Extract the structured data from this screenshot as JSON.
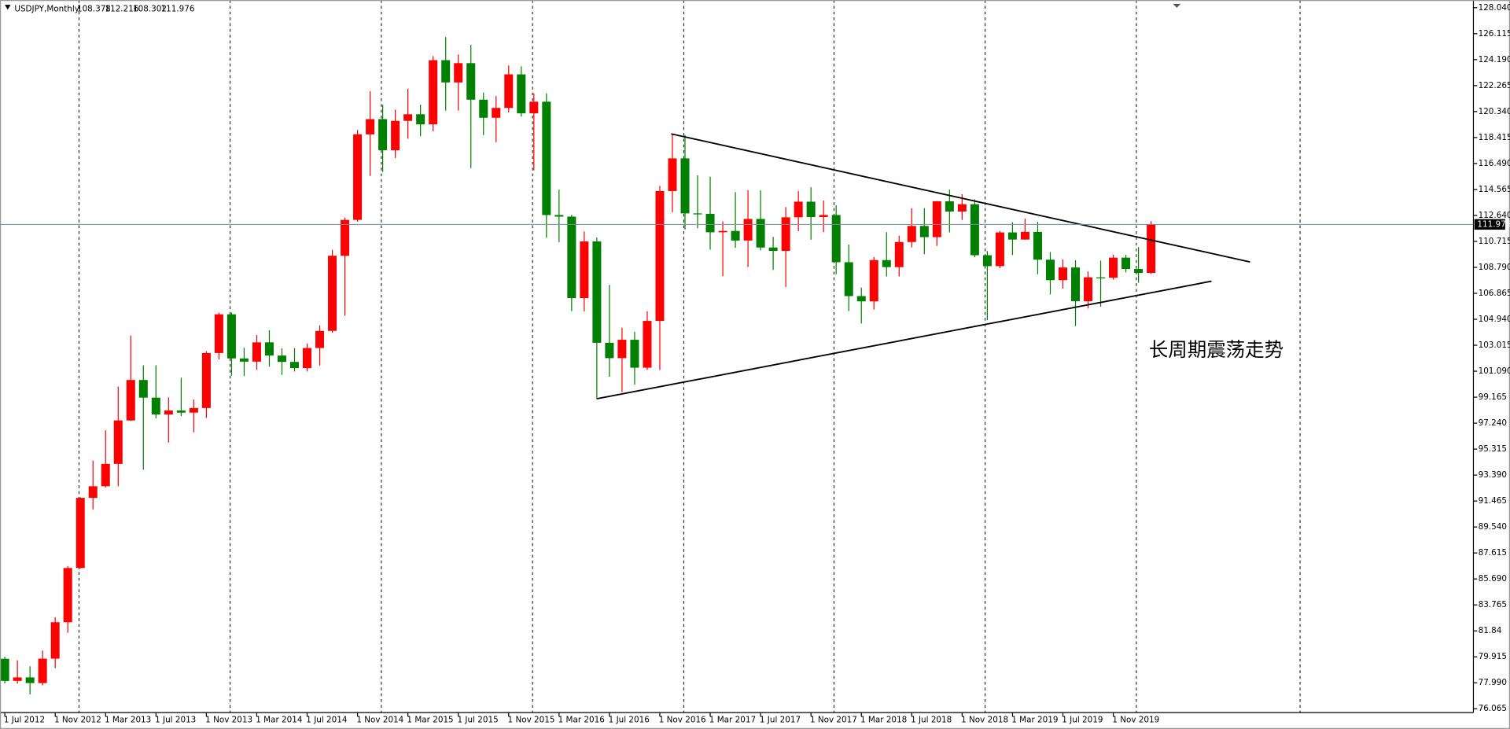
{
  "chart_data": {
    "type": "candlestick",
    "title": "USDJPY,Monthly",
    "up_color": "#ff0000",
    "down_color": "#008000",
    "price_line_color": "#778899",
    "annotation": "长周期震荡走势",
    "categories": [
      "1 Jul 2012",
      null,
      null,
      null,
      "1 Nov 2012",
      null,
      null,
      null,
      "1 Mar 2013",
      null,
      null,
      null,
      "1 Jul 2013",
      null,
      null,
      null,
      "1 Nov 2013",
      null,
      null,
      null,
      "1 Mar 2014",
      null,
      null,
      null,
      "1 Jul 2014",
      null,
      null,
      null,
      "1 Nov 2014",
      null,
      null,
      null,
      "1 Mar 2015",
      null,
      null,
      null,
      "1 Jul 2015",
      null,
      null,
      null,
      "1 Nov 2015",
      null,
      null,
      null,
      "1 Mar 2016",
      null,
      null,
      null,
      "1 Jul 2016",
      null,
      null,
      null,
      "1 Nov 2016",
      null,
      null,
      null,
      "1 Mar 2017",
      null,
      null,
      null,
      "1 Jul 2017",
      null,
      null,
      null,
      "1 Nov 2017",
      null,
      null,
      null,
      "1 Mar 2018",
      null,
      null,
      null,
      "1 Jul 2018",
      null,
      null,
      null,
      "1 Nov 2018",
      null,
      null,
      null,
      "1 Mar 2019",
      null,
      null,
      null,
      "1 Jul 2019",
      null,
      null,
      null,
      "1 Nov 2019",
      null,
      null,
      null
    ],
    "open": [
      79.77,
      78.13,
      78.39,
      77.97,
      79.78,
      82.48,
      86.5,
      91.7,
      92.56,
      94.22,
      97.44,
      100.44,
      99.13,
      97.88,
      98.18,
      98.02,
      98.36,
      102.44,
      105.31,
      102.04,
      101.8,
      103.23,
      102.25,
      101.78,
      101.32,
      102.81,
      104.08,
      109.65,
      112.31,
      118.65,
      119.78,
      117.47,
      119.65,
      120.14,
      119.39,
      124.15,
      122.5,
      123.93,
      121.22,
      119.88,
      120.61,
      123.1,
      120.21,
      121.07,
      112.67,
      112.55,
      106.51,
      110.71,
      103.2,
      102.06,
      103.42,
      101.35,
      104.82,
      114.45,
      116.87,
      112.79,
      112.76,
      111.39,
      111.49,
      110.78,
      112.38,
      110.26,
      110.01,
      112.5,
      113.66,
      112.52,
      112.67,
      109.17,
      106.66,
      106.27,
      109.33,
      108.81,
      110.67,
      111.86,
      111.03,
      113.69,
      112.93,
      113.47,
      109.69,
      108.88,
      111.38,
      110.85,
      111.42,
      109.36,
      107.84,
      108.78,
      106.28,
      108.05,
      108.02,
      109.51,
      108.67,
      108.378
    ],
    "high": [
      79.92,
      79.66,
      79.21,
      80.38,
      82.85,
      86.64,
      91.74,
      94.46,
      96.71,
      99.95,
      103.73,
      101.53,
      101.53,
      99.15,
      100.61,
      99.0,
      102.58,
      105.43,
      105.45,
      102.83,
      103.77,
      104.13,
      102.79,
      102.8,
      103.15,
      104.49,
      110.09,
      112.47,
      118.98,
      121.86,
      120.84,
      120.48,
      122.04,
      120.85,
      124.45,
      125.86,
      124.58,
      125.28,
      121.75,
      121.49,
      123.76,
      123.69,
      121.69,
      121.69,
      114.55,
      112.68,
      111.45,
      111.0,
      107.49,
      104.32,
      104.01,
      105.53,
      114.83,
      118.66,
      118.61,
      115.62,
      115.51,
      112.2,
      114.37,
      114.5,
      114.49,
      111.05,
      113.26,
      114.45,
      114.73,
      113.75,
      113.39,
      110.48,
      107.29,
      109.56,
      111.4,
      111.14,
      113.17,
      113.18,
      113.7,
      114.55,
      114.21,
      113.83,
      110.0,
      111.49,
      112.14,
      112.4,
      112.17,
      109.93,
      109.38,
      109.32,
      108.48,
      109.29,
      109.73,
      109.72,
      110.29,
      112.216
    ],
    "low": [
      77.95,
      77.93,
      77.13,
      77.8,
      79.07,
      81.7,
      86.47,
      90.84,
      92.47,
      92.56,
      97.4,
      93.79,
      97.6,
      95.8,
      97.76,
      96.56,
      97.63,
      101.97,
      100.76,
      100.74,
      101.2,
      101.43,
      100.82,
      101.07,
      101.07,
      101.51,
      103.94,
      105.19,
      112.17,
      115.57,
      115.86,
      116.9,
      118.33,
      118.52,
      118.88,
      120.41,
      120.41,
      116.15,
      118.6,
      118.07,
      120.28,
      119.97,
      115.98,
      110.98,
      110.66,
      105.55,
      105.53,
      99.02,
      100.68,
      99.54,
      100.09,
      101.2,
      101.19,
      112.88,
      111.59,
      111.69,
      110.11,
      108.13,
      110.24,
      108.82,
      110.05,
      108.6,
      107.32,
      111.47,
      110.84,
      111.4,
      108.28,
      105.55,
      104.63,
      105.66,
      108.11,
      108.11,
      110.27,
      109.77,
      110.38,
      111.38,
      112.3,
      109.54,
      104.87,
      108.73,
      109.7,
      110.84,
      108.28,
      106.78,
      107.22,
      104.44,
      105.74,
      105.88,
      107.88,
      108.42,
      107.65,
      108.302
    ],
    "close": [
      78.13,
      78.39,
      77.97,
      79.78,
      82.48,
      86.5,
      91.7,
      92.56,
      94.22,
      97.44,
      100.44,
      99.13,
      97.88,
      98.18,
      98.02,
      98.36,
      102.44,
      105.31,
      102.04,
      101.8,
      103.23,
      102.25,
      101.78,
      101.32,
      102.81,
      104.08,
      109.65,
      112.31,
      118.65,
      119.78,
      117.47,
      119.65,
      120.14,
      119.39,
      124.15,
      122.5,
      123.93,
      121.22,
      119.88,
      120.61,
      123.1,
      120.21,
      121.07,
      112.67,
      112.55,
      106.51,
      110.71,
      103.2,
      102.06,
      103.42,
      101.35,
      104.82,
      114.45,
      116.87,
      112.79,
      112.76,
      111.39,
      111.49,
      110.78,
      112.38,
      110.26,
      110.01,
      112.5,
      113.66,
      112.52,
      112.67,
      109.17,
      106.66,
      106.27,
      109.33,
      108.81,
      110.67,
      111.86,
      111.03,
      113.69,
      112.93,
      113.47,
      109.69,
      108.88,
      111.38,
      110.85,
      111.42,
      109.36,
      107.84,
      108.78,
      106.28,
      108.05,
      108.02,
      109.51,
      108.67,
      108.378,
      111.976
    ],
    "ylim": [
      75.78,
      128.61
    ],
    "yticks": [
      76.065,
      {
        "value": 77.99,
        "label": "77.990"
      },
      79.915,
      81.84,
      83.765,
      {
        "value": 85.69,
        "label": "85.690"
      },
      87.615,
      {
        "value": 89.54,
        "label": "89.540"
      },
      91.465,
      {
        "value": 93.39,
        "label": "93.390"
      },
      95.315,
      {
        "value": 97.24,
        "label": "97.240"
      },
      99.165,
      {
        "value": 101.09,
        "label": "101.090"
      },
      103.015,
      {
        "value": 104.94,
        "label": "104.940"
      },
      106.865,
      {
        "value": 108.79,
        "label": "108.790"
      },
      110.715,
      {
        "value": 112.64,
        "label": "112.640"
      },
      114.565,
      {
        "value": 116.49,
        "label": "116.490"
      },
      118.415,
      {
        "value": 120.34,
        "label": "120.340"
      },
      122.265,
      {
        "value": 124.19,
        "label": "124.190"
      },
      126.115,
      {
        "value": 128.04,
        "label": "128.040"
      }
    ]
  }
}
